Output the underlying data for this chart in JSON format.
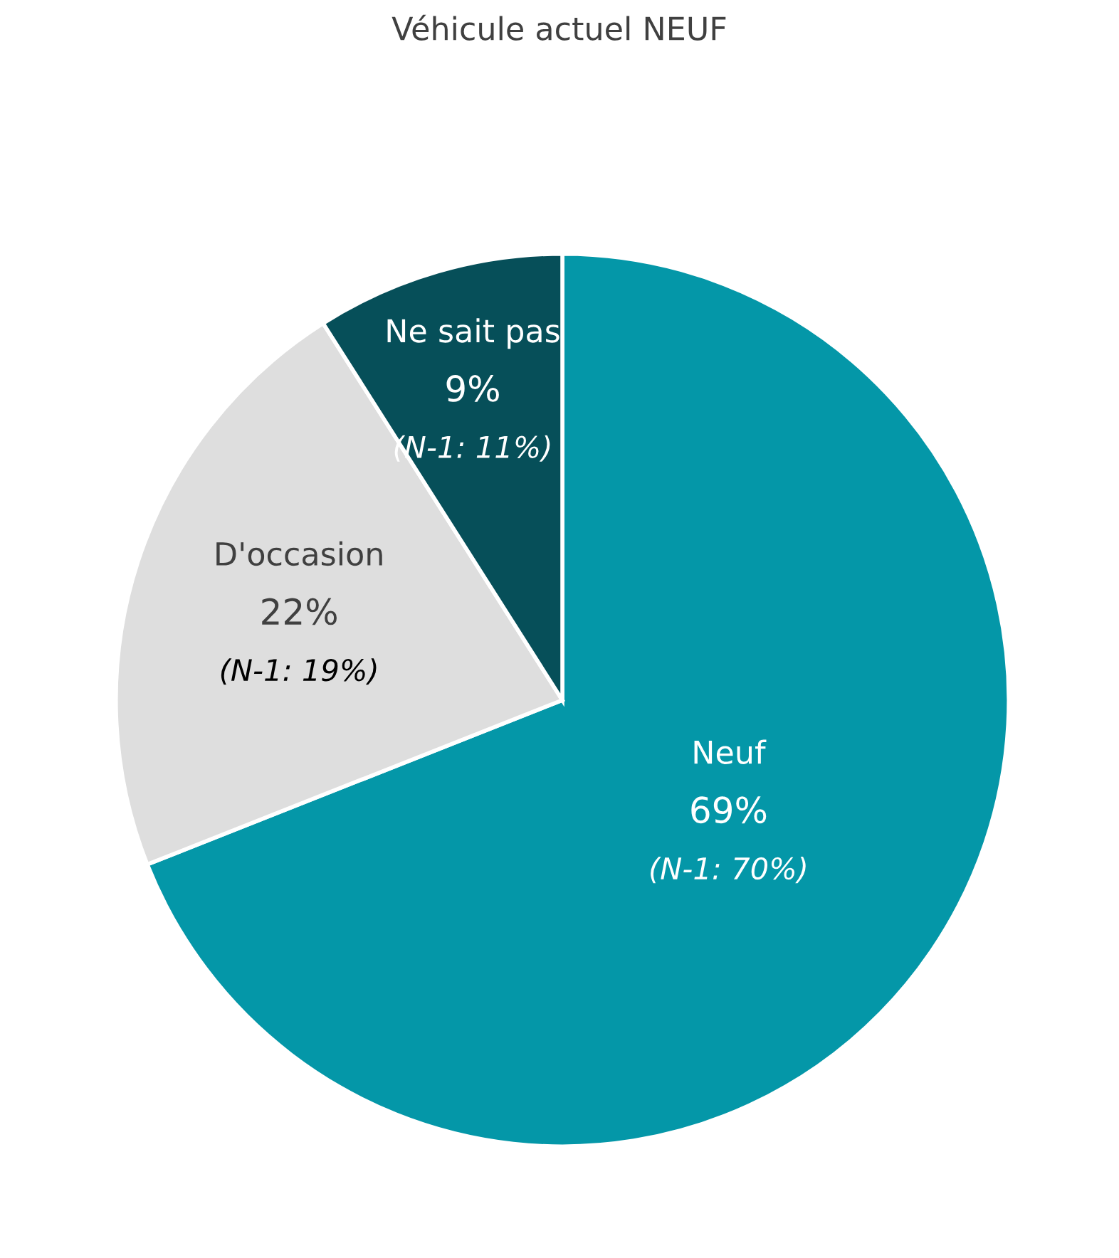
{
  "chart_data": {
    "type": "pie",
    "title": "Véhicule actuel NEUF",
    "categories": [
      "Neuf",
      "D'occasion",
      "Ne sait pas"
    ],
    "values": [
      69,
      22,
      9
    ],
    "colors": [
      "#0497a8",
      "#dedede",
      "#064f59"
    ],
    "value_labels": [
      "69%",
      "22%",
      "9%"
    ],
    "annotations": [
      "(N-1: 70%)",
      "(N-1: 19%)",
      "(N-1: 11%)"
    ],
    "legend": false
  }
}
